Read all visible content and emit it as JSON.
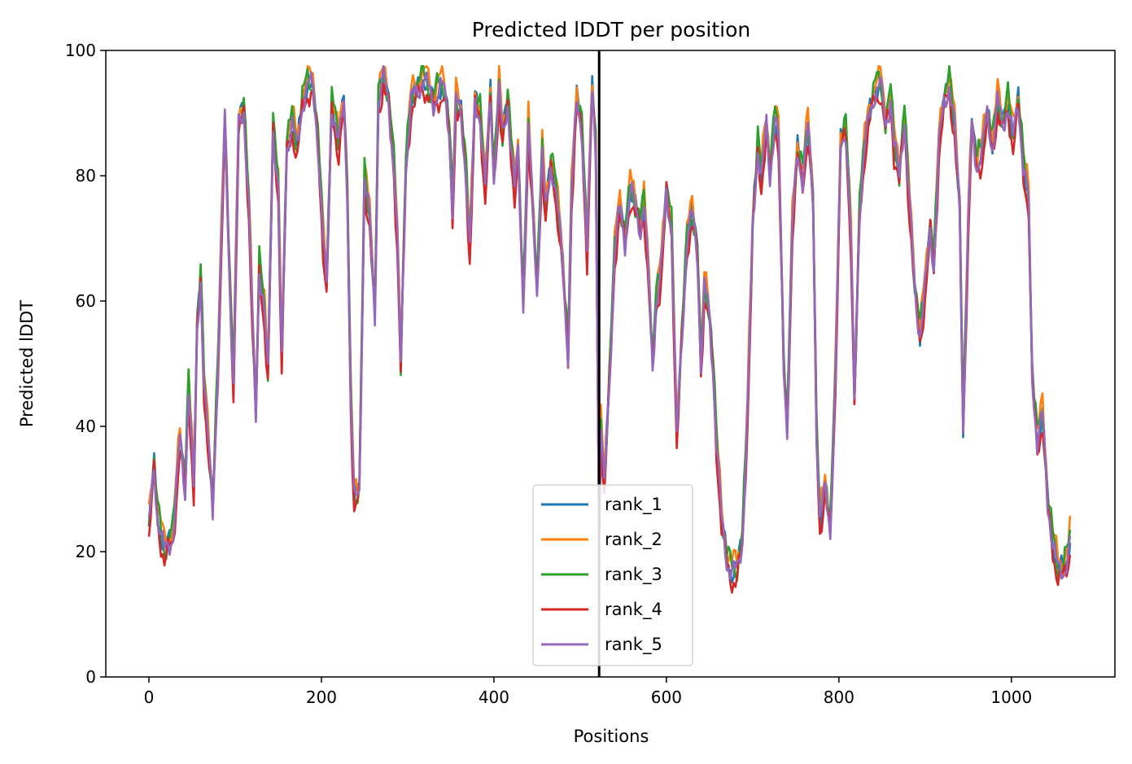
{
  "chart_data": {
    "type": "line",
    "title": "Predicted lDDT per position",
    "xlabel": "Positions",
    "ylabel": "Predicted lDDT",
    "xlim": [
      -50,
      1120
    ],
    "ylim": [
      0,
      100
    ],
    "xticks": [
      0,
      200,
      400,
      600,
      800,
      1000
    ],
    "yticks": [
      0,
      20,
      40,
      60,
      80,
      100
    ],
    "grid": false,
    "legend_position": "bottom-center",
    "chain_break_x": 522,
    "series": [
      {
        "name": "rank_1",
        "color": "#1f77b4",
        "offset": 0.0
      },
      {
        "name": "rank_2",
        "color": "#ff7f0e",
        "offset": 1.4
      },
      {
        "name": "rank_3",
        "color": "#2ca02c",
        "offset": 0.6
      },
      {
        "name": "rank_4",
        "color": "#d62728",
        "offset": -1.5
      },
      {
        "name": "rank_5",
        "color": "#9467bd",
        "offset": -0.3
      }
    ],
    "profile": [
      [
        0,
        24
      ],
      [
        6,
        34
      ],
      [
        10,
        26
      ],
      [
        18,
        20
      ],
      [
        28,
        23
      ],
      [
        36,
        38
      ],
      [
        42,
        30
      ],
      [
        46,
        47
      ],
      [
        52,
        30
      ],
      [
        56,
        56
      ],
      [
        60,
        64
      ],
      [
        64,
        47
      ],
      [
        70,
        35
      ],
      [
        74,
        27
      ],
      [
        80,
        50
      ],
      [
        88,
        89
      ],
      [
        94,
        62
      ],
      [
        98,
        47
      ],
      [
        104,
        88
      ],
      [
        110,
        91
      ],
      [
        116,
        75
      ],
      [
        120,
        57
      ],
      [
        124,
        42
      ],
      [
        128,
        66
      ],
      [
        134,
        58
      ],
      [
        138,
        48
      ],
      [
        144,
        88
      ],
      [
        150,
        78
      ],
      [
        154,
        50
      ],
      [
        160,
        85
      ],
      [
        166,
        89
      ],
      [
        172,
        84
      ],
      [
        178,
        92
      ],
      [
        184,
        95
      ],
      [
        190,
        94
      ],
      [
        196,
        86
      ],
      [
        202,
        70
      ],
      [
        206,
        62
      ],
      [
        212,
        92
      ],
      [
        220,
        85
      ],
      [
        226,
        92
      ],
      [
        230,
        78
      ],
      [
        234,
        45
      ],
      [
        238,
        28
      ],
      [
        244,
        30
      ],
      [
        250,
        80
      ],
      [
        256,
        73
      ],
      [
        262,
        58
      ],
      [
        266,
        92
      ],
      [
        272,
        96
      ],
      [
        278,
        92
      ],
      [
        284,
        82
      ],
      [
        288,
        70
      ],
      [
        292,
        50
      ],
      [
        298,
        82
      ],
      [
        304,
        92
      ],
      [
        312,
        94
      ],
      [
        318,
        96
      ],
      [
        324,
        94
      ],
      [
        330,
        92
      ],
      [
        336,
        94
      ],
      [
        342,
        94
      ],
      [
        348,
        88
      ],
      [
        352,
        75
      ],
      [
        356,
        92
      ],
      [
        362,
        90
      ],
      [
        368,
        80
      ],
      [
        372,
        68
      ],
      [
        378,
        92
      ],
      [
        384,
        90
      ],
      [
        390,
        78
      ],
      [
        396,
        93
      ],
      [
        400,
        80
      ],
      [
        406,
        94
      ],
      [
        410,
        86
      ],
      [
        416,
        92
      ],
      [
        420,
        85
      ],
      [
        424,
        78
      ],
      [
        428,
        84
      ],
      [
        434,
        60
      ],
      [
        440,
        88
      ],
      [
        446,
        72
      ],
      [
        450,
        62
      ],
      [
        456,
        84
      ],
      [
        460,
        74
      ],
      [
        466,
        82
      ],
      [
        470,
        80
      ],
      [
        476,
        72
      ],
      [
        480,
        65
      ],
      [
        486,
        52
      ],
      [
        490,
        77
      ],
      [
        496,
        92
      ],
      [
        502,
        88
      ],
      [
        508,
        68
      ],
      [
        514,
        94
      ],
      [
        518,
        85
      ],
      [
        522,
        24
      ],
      [
        524,
        40
      ],
      [
        528,
        30
      ],
      [
        534,
        48
      ],
      [
        540,
        68
      ],
      [
        546,
        75
      ],
      [
        552,
        70
      ],
      [
        558,
        78
      ],
      [
        564,
        75
      ],
      [
        570,
        72
      ],
      [
        574,
        76
      ],
      [
        580,
        62
      ],
      [
        584,
        50
      ],
      [
        588,
        60
      ],
      [
        594,
        65
      ],
      [
        600,
        78
      ],
      [
        606,
        72
      ],
      [
        612,
        38
      ],
      [
        618,
        55
      ],
      [
        624,
        70
      ],
      [
        630,
        74
      ],
      [
        636,
        68
      ],
      [
        640,
        50
      ],
      [
        644,
        62
      ],
      [
        648,
        60
      ],
      [
        654,
        50
      ],
      [
        658,
        38
      ],
      [
        664,
        25
      ],
      [
        670,
        19
      ],
      [
        676,
        17
      ],
      [
        682,
        17
      ],
      [
        688,
        22
      ],
      [
        694,
        42
      ],
      [
        700,
        72
      ],
      [
        706,
        85
      ],
      [
        710,
        80
      ],
      [
        716,
        88
      ],
      [
        720,
        80
      ],
      [
        726,
        90
      ],
      [
        730,
        86
      ],
      [
        736,
        50
      ],
      [
        740,
        40
      ],
      [
        746,
        72
      ],
      [
        752,
        84
      ],
      [
        758,
        80
      ],
      [
        764,
        88
      ],
      [
        770,
        76
      ],
      [
        774,
        40
      ],
      [
        778,
        25
      ],
      [
        784,
        30
      ],
      [
        790,
        24
      ],
      [
        796,
        48
      ],
      [
        802,
        85
      ],
      [
        808,
        88
      ],
      [
        814,
        70
      ],
      [
        818,
        44
      ],
      [
        824,
        75
      ],
      [
        830,
        85
      ],
      [
        836,
        90
      ],
      [
        842,
        94
      ],
      [
        848,
        95
      ],
      [
        854,
        88
      ],
      [
        860,
        93
      ],
      [
        864,
        85
      ],
      [
        870,
        80
      ],
      [
        876,
        90
      ],
      [
        882,
        75
      ],
      [
        888,
        62
      ],
      [
        894,
        55
      ],
      [
        900,
        62
      ],
      [
        906,
        72
      ],
      [
        910,
        66
      ],
      [
        916,
        85
      ],
      [
        922,
        92
      ],
      [
        928,
        95
      ],
      [
        934,
        88
      ],
      [
        940,
        75
      ],
      [
        944,
        40
      ],
      [
        950,
        72
      ],
      [
        954,
        88
      ],
      [
        960,
        82
      ],
      [
        966,
        84
      ],
      [
        972,
        90
      ],
      [
        978,
        85
      ],
      [
        984,
        92
      ],
      [
        990,
        88
      ],
      [
        996,
        92
      ],
      [
        1002,
        86
      ],
      [
        1008,
        92
      ],
      [
        1014,
        82
      ],
      [
        1020,
        76
      ],
      [
        1024,
        48
      ],
      [
        1030,
        38
      ],
      [
        1036,
        42
      ],
      [
        1042,
        28
      ],
      [
        1048,
        22
      ],
      [
        1054,
        17
      ],
      [
        1060,
        17
      ],
      [
        1066,
        20
      ],
      [
        1068,
        22
      ]
    ]
  }
}
